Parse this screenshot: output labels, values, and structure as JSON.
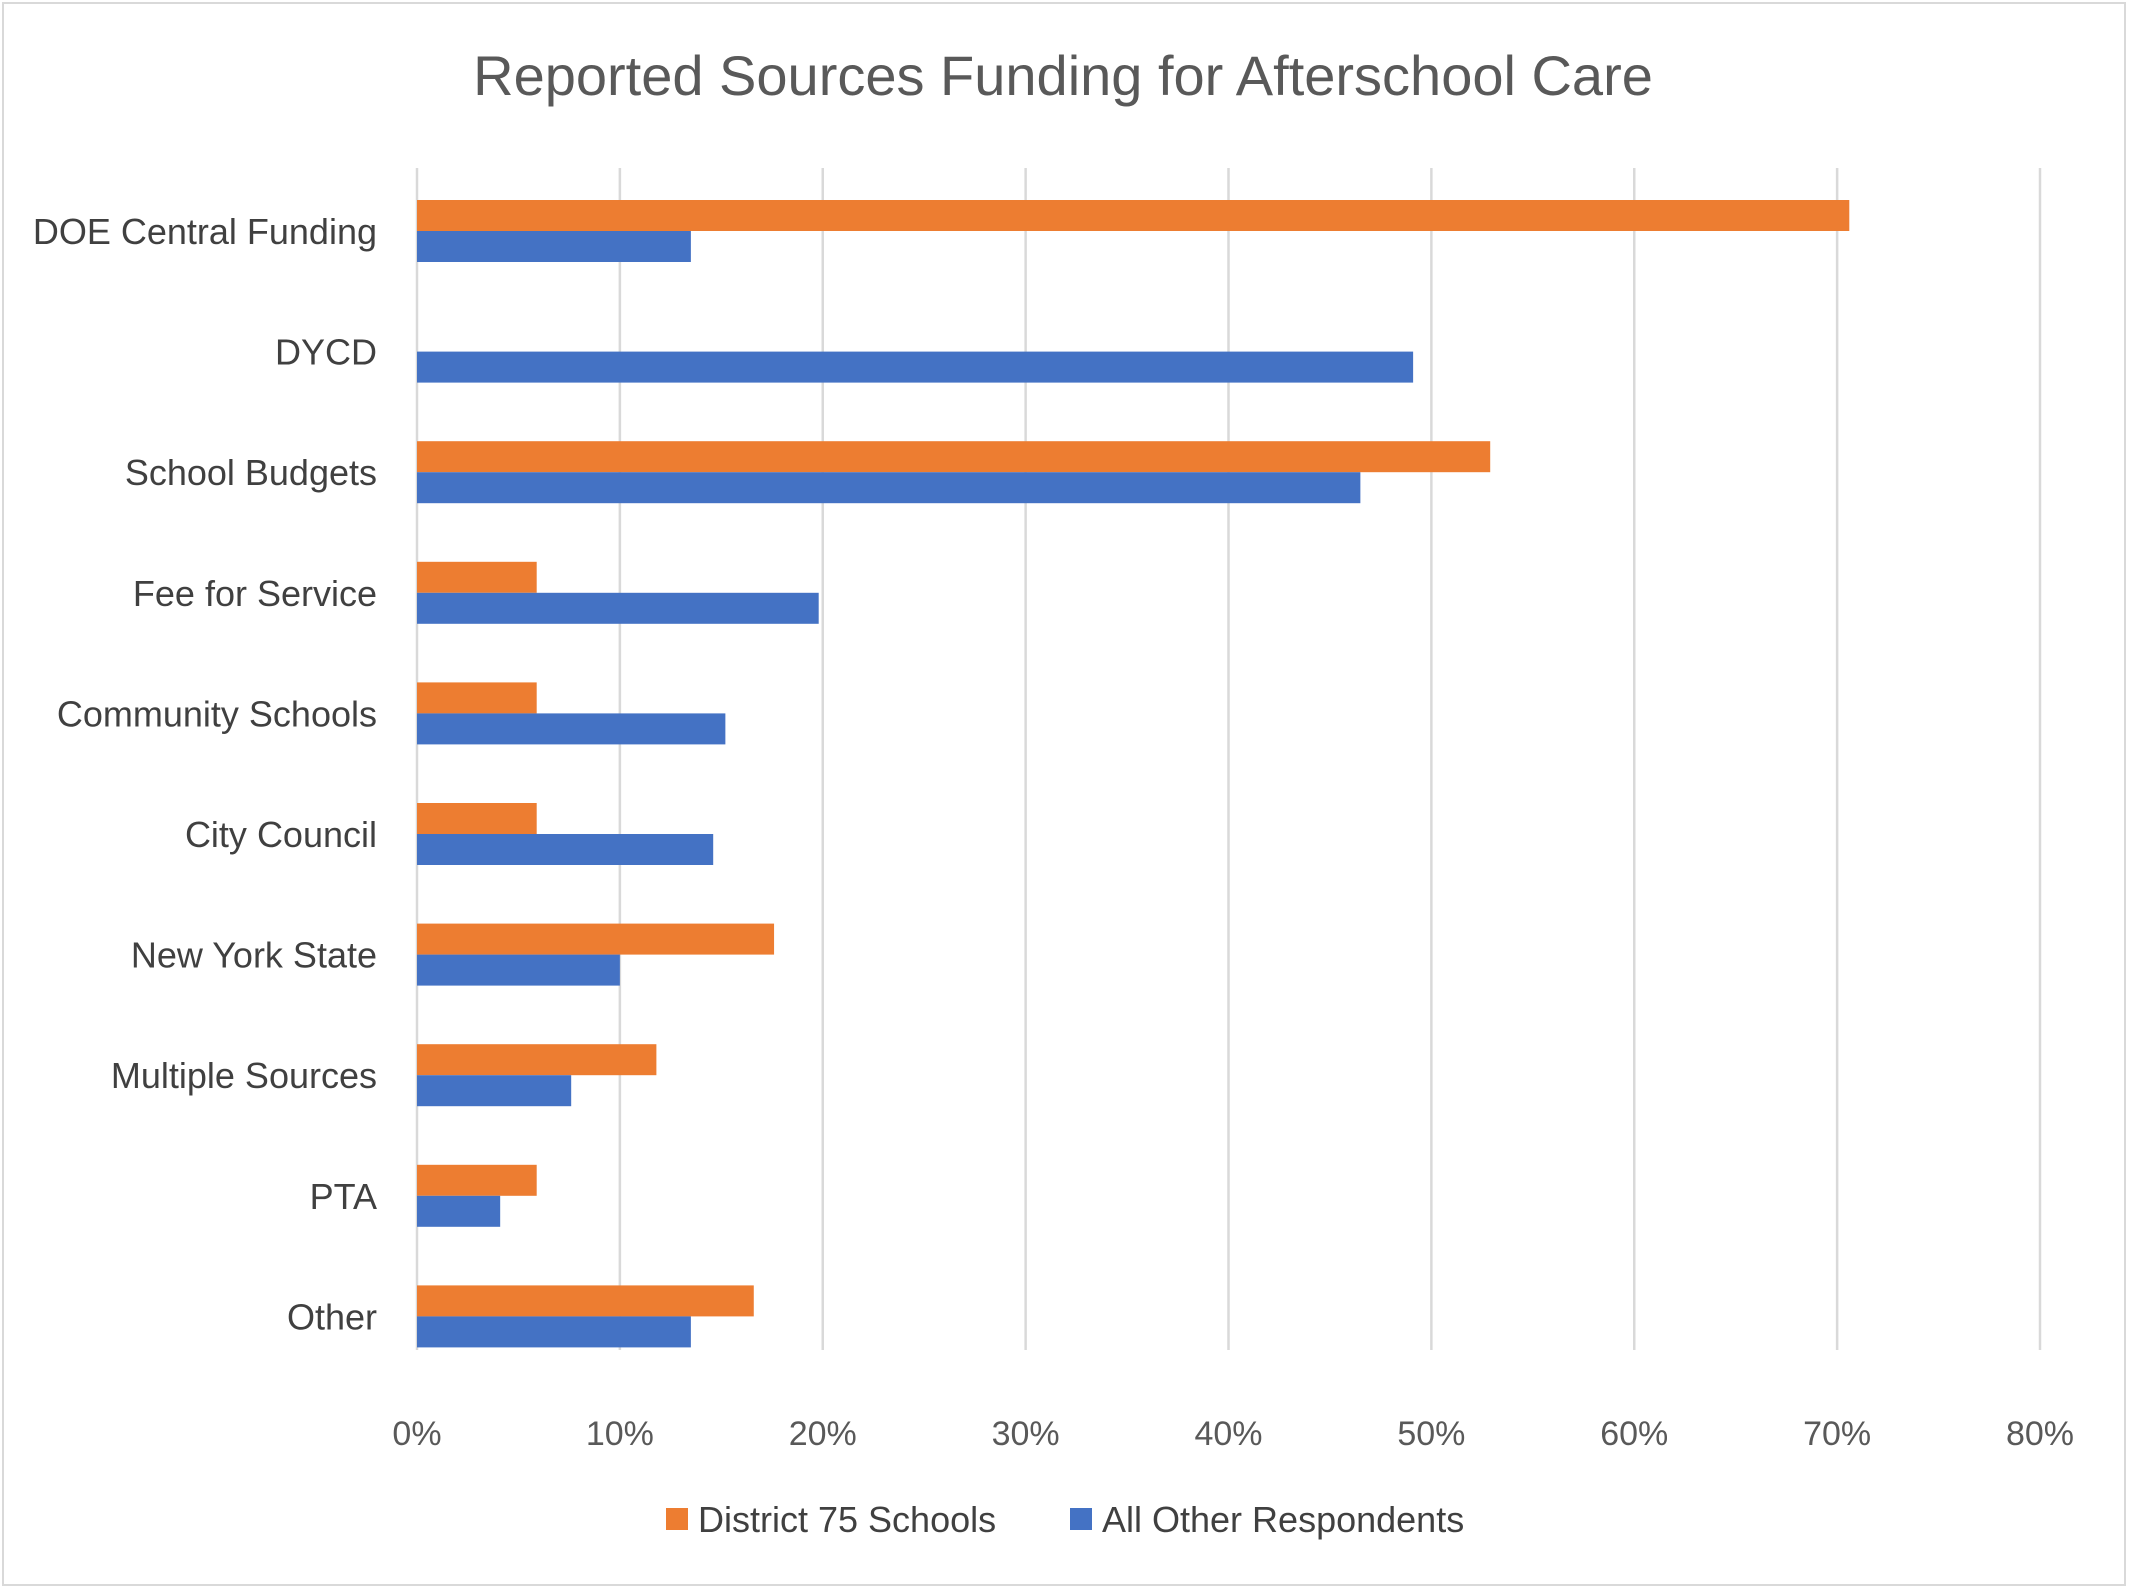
{
  "chart_data": {
    "type": "bar",
    "orientation": "horizontal",
    "title": "Reported Sources Funding for Afterschool Care",
    "xlabel": "",
    "ylabel": "",
    "categories": [
      "DOE Central Funding",
      "DYCD",
      "School Budgets",
      "Fee for Service",
      "Community Schools",
      "City Council",
      "New York State",
      "Multiple Sources",
      "PTA",
      "Other"
    ],
    "series": [
      {
        "name": "District 75 Schools",
        "color": "#ED7D31",
        "values": [
          0.706,
          0,
          0.529,
          0.059,
          0.059,
          0.059,
          0.176,
          0.118,
          0.059,
          0.166
        ]
      },
      {
        "name": "All Other Respondents",
        "color": "#4472C4",
        "values": [
          0.135,
          0.491,
          0.465,
          0.198,
          0.152,
          0.146,
          0.1,
          0.076,
          0.041,
          0.135
        ]
      }
    ],
    "xlim": [
      0,
      0.8
    ],
    "x_ticks": [
      "0%",
      "10%",
      "20%",
      "30%",
      "40%",
      "50%",
      "60%",
      "70%",
      "80%"
    ],
    "tick_values": [
      0,
      0.1,
      0.2,
      0.3,
      0.4,
      0.5,
      0.6,
      0.7,
      0.8
    ],
    "grid": "vertical",
    "legend_position": "bottom"
  }
}
